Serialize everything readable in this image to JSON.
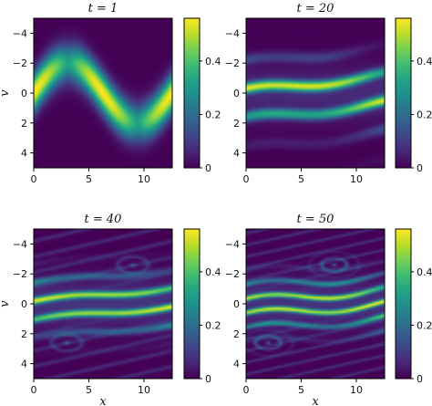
{
  "figure": {
    "colormap": "viridis",
    "colors": {
      "low": "#440154",
      "mid": "#21918c",
      "high": "#fde725"
    }
  },
  "chart_data": [
    {
      "type": "heatmap",
      "title": "t = 1",
      "xlabel": "",
      "ylabel": "v",
      "xlim": [
        0,
        12.566
      ],
      "ylim": [
        5,
        -5
      ],
      "xticks": [
        "0",
        "5",
        "10"
      ],
      "yticks": [
        "−4",
        "−2",
        "0",
        "2",
        "4"
      ],
      "colorbar": {
        "range": [
          0,
          0.56
        ],
        "ticks": [
          "0",
          "0.2",
          "0.4"
        ]
      },
      "pattern": "single sinusoidal band following v ≈ −2 sin(x/2), brightest near (x≈1.5, v≈0.5) and (x≈11.5, v≈0)"
    },
    {
      "type": "heatmap",
      "title": "t = 20",
      "xlabel": "",
      "ylabel": "",
      "xlim": [
        0,
        12.566
      ],
      "ylim": [
        5,
        -5
      ],
      "xticks": [
        "0",
        "5",
        "10"
      ],
      "yticks": [
        "−4",
        "−2",
        "0",
        "2",
        "4"
      ],
      "colorbar": {
        "range": [
          0,
          0.56
        ],
        "ticks": [
          "0",
          "0.2",
          "0.4"
        ]
      },
      "pattern": "filamented horizontal stripes, brightest near v≈0, fading with |v|"
    },
    {
      "type": "heatmap",
      "title": "t = 40",
      "xlabel": "x",
      "ylabel": "v",
      "xlim": [
        0,
        12.566
      ],
      "ylim": [
        5,
        -5
      ],
      "xticks": [
        "0",
        "5",
        "10"
      ],
      "yticks": [
        "−4",
        "−2",
        "0",
        "2",
        "4"
      ],
      "colorbar": {
        "range": [
          0,
          0.56
        ],
        "ticks": [
          "0",
          "0.2",
          "0.4"
        ]
      },
      "pattern": "fine horizontal filaments with phase-space vortices near (x≈9, v≈−2.5) and (x≈3, v≈2.5)"
    },
    {
      "type": "heatmap",
      "title": "t = 50",
      "xlabel": "x",
      "ylabel": "",
      "xlim": [
        0,
        12.566
      ],
      "ylim": [
        5,
        -5
      ],
      "xticks": [
        "0",
        "5",
        "10"
      ],
      "yticks": [
        "−4",
        "−2",
        "0",
        "2",
        "4"
      ],
      "colorbar": {
        "range": [
          0,
          0.56
        ],
        "ticks": [
          "0",
          "0.2",
          "0.4"
        ]
      },
      "pattern": "very fine filaments, wavy stripes, vortices near (x≈8, v≈−2.5) and (x≈2, v≈2.5)"
    }
  ]
}
